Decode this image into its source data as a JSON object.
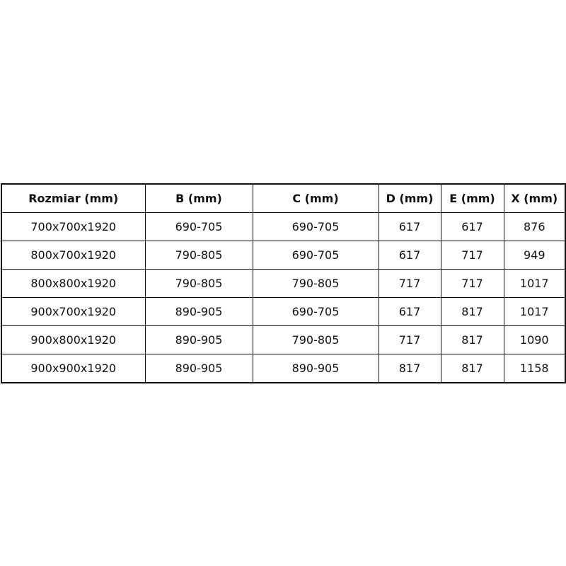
{
  "table": {
    "headers": [
      "Rozmiar (mm)",
      "B (mm)",
      "C (mm)",
      "D (mm)",
      "E (mm)",
      "X (mm)"
    ],
    "rows": [
      [
        "700x700x1920",
        "690-705",
        "690-705",
        "617",
        "617",
        "876"
      ],
      [
        "800x700x1920",
        "790-805",
        "690-705",
        "617",
        "717",
        "949"
      ],
      [
        "800x800x1920",
        "790-805",
        "790-805",
        "717",
        "717",
        "1017"
      ],
      [
        "900x700x1920",
        "890-905",
        "690-705",
        "617",
        "817",
        "1017"
      ],
      [
        "900x800x1920",
        "890-905",
        "790-805",
        "717",
        "817",
        "1090"
      ],
      [
        "900x900x1920",
        "890-905",
        "890-905",
        "817",
        "817",
        "1158"
      ]
    ]
  }
}
